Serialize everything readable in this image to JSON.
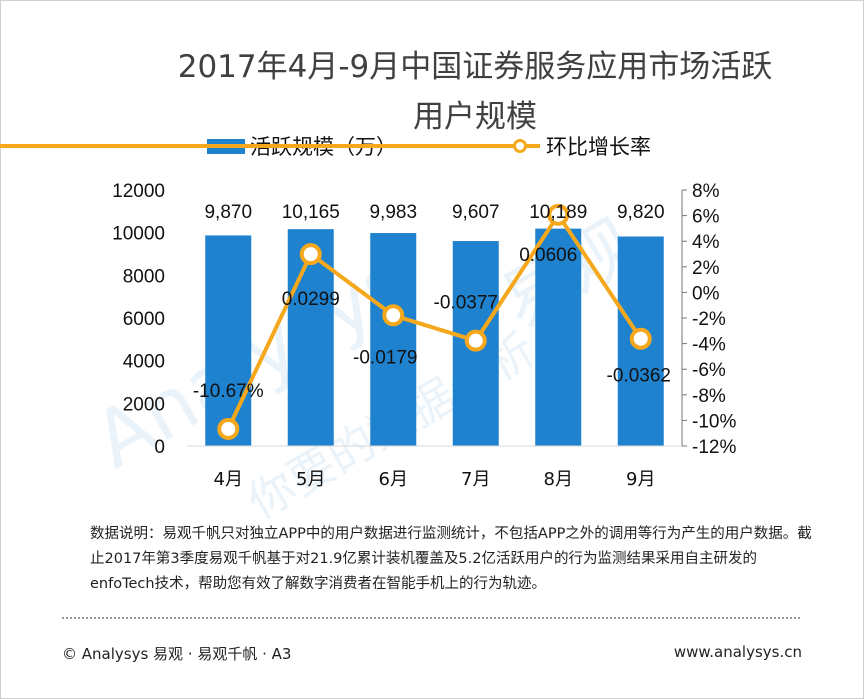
{
  "title_line1": "2017年4月-9月中国证券服务应用市场活跃",
  "title_line2": "用户规模",
  "chart_data": {
    "type": "bar+line",
    "categories": [
      "4月",
      "5月",
      "6月",
      "7月",
      "8月",
      "9月"
    ],
    "series": [
      {
        "name": "活跃规模（万）",
        "type": "bar",
        "axis": "left",
        "values": [
          9870,
          10165,
          9983,
          9607,
          10189,
          9820
        ],
        "labels": [
          "9,870",
          "10,165",
          "9,983",
          "9,607",
          "10,189",
          "9,820"
        ]
      },
      {
        "name": "环比增长率",
        "type": "line",
        "axis": "right",
        "values": [
          -0.1067,
          0.0299,
          -0.0179,
          -0.0377,
          0.0606,
          -0.0362
        ],
        "labels": [
          "-10.67%",
          "0.0299",
          "-0.0179",
          "-0.0377",
          "0.0606",
          "-0.0362"
        ]
      }
    ],
    "y_left": {
      "min": 0,
      "max": 12000,
      "ticks": [
        "0",
        "2000",
        "4000",
        "6000",
        "8000",
        "10000",
        "12000"
      ]
    },
    "y_right": {
      "min": -0.12,
      "max": 0.08,
      "ticks": [
        "-12%",
        "-10%",
        "-8%",
        "-6%",
        "-4%",
        "-2%",
        "0%",
        "2%",
        "4%",
        "6%",
        "8%"
      ]
    },
    "bar_color": "#1f82cf",
    "line_color": "#f5a81c"
  },
  "note": "数据说明：易观千帆只对独立APP中的用户数据进行监测统计，不包括APP之外的调用等行为产生的用户数据。截止2017年第3季度易观千帆基于对21.9亿累计装机覆盖及5.2亿活跃用户的行为监测结果采用自主研发的enfoTech技术，帮助您有效了解数字消费者在智能手机上的行为轨迹。",
  "footer_left": "© Analysys 易观 · 易观千帆 · A3",
  "footer_right": "www.analysys.cn",
  "watermark_brand": "Analysys",
  "watermark_cn": "易观",
  "watermark_slogan": "你要的数据分析"
}
